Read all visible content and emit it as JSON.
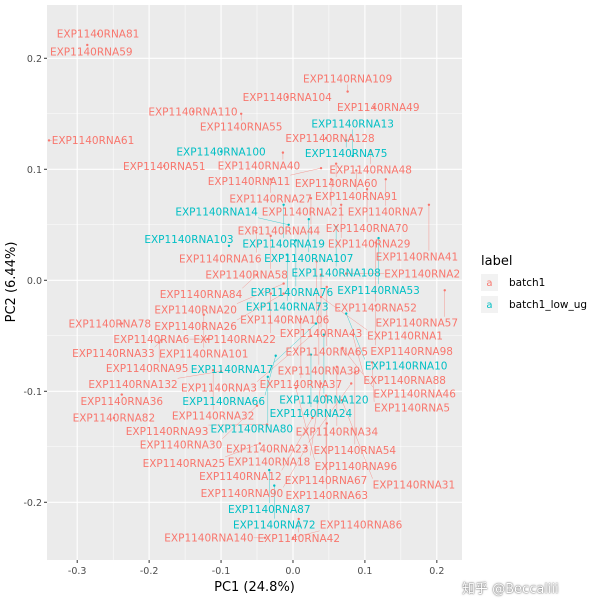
{
  "chart_data": {
    "type": "scatter",
    "geom": "text-labels",
    "xlabel": "PC1 (24.8%)",
    "ylabel": "PC2 (6.44%)",
    "xlim": [
      -0.342,
      0.235
    ],
    "ylim": [
      -0.252,
      0.248
    ],
    "xticks": [
      -0.3,
      -0.2,
      -0.1,
      0.0,
      0.1,
      0.2
    ],
    "xtick_labels": [
      "-0.3",
      "-0.2",
      "-0.1",
      "0.0",
      "0.1",
      "0.2"
    ],
    "yticks": [
      -0.2,
      -0.1,
      0.0,
      0.1,
      0.2
    ],
    "ytick_labels": [
      "-0.2",
      "-0.1",
      "0.0",
      "0.1",
      "0.2"
    ],
    "grid": true,
    "legend": {
      "title": "label",
      "placement": "right",
      "key_glyph": "a",
      "entries": [
        {
          "name": "batch1",
          "color": "#F8766D"
        },
        {
          "name": "batch1_low_ug",
          "color": "#00BFC4"
        }
      ]
    },
    "points": [
      {
        "label": "EXP1140RNA81",
        "x": -0.271,
        "y": 0.222,
        "group": "batch1"
      },
      {
        "label": "EXP1140RNA59",
        "x": -0.286,
        "y": 0.212,
        "group": "batch1"
      },
      {
        "label": "EXP1140RNA104",
        "x": -0.008,
        "y": 0.165,
        "group": "batch1"
      },
      {
        "label": "EXP1140RNA109",
        "x": 0.076,
        "y": 0.17,
        "group": "batch1"
      },
      {
        "label": "EXP1140RNA49",
        "x": 0.113,
        "y": 0.156,
        "group": "batch1"
      },
      {
        "label": "EXP1140RNA110",
        "x": -0.139,
        "y": 0.152,
        "group": "batch1"
      },
      {
        "label": "EXP1140RNA55",
        "x": -0.072,
        "y": 0.15,
        "group": "batch1"
      },
      {
        "label": "EXP1140RNA61",
        "x": -0.354,
        "y": 0.126,
        "group": "batch1"
      },
      {
        "label": "EXP1140RNA51",
        "x": -0.179,
        "y": 0.103,
        "group": "batch1"
      },
      {
        "label": "EXP1140RNA128",
        "x": 0.046,
        "y": 0.128,
        "group": "batch1"
      },
      {
        "label": "EXP1140RNA75",
        "x": 0.074,
        "y": 0.126,
        "group": "batch1_low_ug"
      },
      {
        "label": "EXP1140RNA48",
        "x": 0.108,
        "y": 0.117,
        "group": "batch1"
      },
      {
        "label": "EXP1140RNA13",
        "x": 0.083,
        "y": 0.112,
        "group": "batch1_low_ug"
      },
      {
        "label": "EXP1140RNA100",
        "x": -0.1,
        "y": 0.116,
        "group": "batch1_low_ug"
      },
      {
        "label": "EXP1140RNA40",
        "x": -0.014,
        "y": 0.115,
        "group": "batch1"
      },
      {
        "label": "EXP1140RNA60",
        "x": 0.06,
        "y": 0.105,
        "group": "batch1"
      },
      {
        "label": "EXP1140RNA91",
        "x": 0.088,
        "y": 0.099,
        "group": "batch1"
      },
      {
        "label": "EXP1140RNA11",
        "x": 0.039,
        "y": 0.101,
        "group": "batch1"
      },
      {
        "label": "EXP1140RNA7",
        "x": 0.129,
        "y": 0.091,
        "group": "batch1"
      },
      {
        "label": "EXP1140RNA27",
        "x": -0.031,
        "y": 0.091,
        "group": "batch1"
      },
      {
        "label": "EXP1140RNA21",
        "x": 0.053,
        "y": 0.091,
        "group": "batch1"
      },
      {
        "label": "EXP1140RNA70",
        "x": 0.103,
        "y": 0.082,
        "group": "batch1"
      },
      {
        "label": "EXP1140RNA44",
        "x": 0.025,
        "y": 0.074,
        "group": "batch1"
      },
      {
        "label": "EXP1140RNA19",
        "x": -0.013,
        "y": 0.068,
        "group": "batch1_low_ug"
      },
      {
        "label": "EXP1140RNA29",
        "x": 0.067,
        "y": 0.068,
        "group": "batch1"
      },
      {
        "label": "EXP1140RNA41",
        "x": 0.189,
        "y": 0.068,
        "group": "batch1"
      },
      {
        "label": "EXP1140RNA107",
        "x": 0.022,
        "y": 0.055,
        "group": "batch1_low_ug"
      },
      {
        "label": "EXP1140RNA108",
        "x": 0.06,
        "y": 0.048,
        "group": "batch1_low_ug"
      },
      {
        "label": "EXP1140RNA14",
        "x": -0.006,
        "y": 0.05,
        "group": "batch1_low_ug"
      },
      {
        "label": "EXP1140RNA16",
        "x": -0.051,
        "y": 0.043,
        "group": "batch1"
      },
      {
        "label": "EXP1140RNA58",
        "x": -0.031,
        "y": 0.04,
        "group": "batch1"
      },
      {
        "label": "EXP1140RNA53",
        "x": 0.119,
        "y": 0.038,
        "group": "batch1_low_ug"
      },
      {
        "label": "EXP1140RNA52",
        "x": 0.115,
        "y": 0.034,
        "group": "batch1"
      },
      {
        "label": "EXP1140RNA76",
        "x": 0.004,
        "y": 0.036,
        "group": "batch1_low_ug"
      },
      {
        "label": "EXP1140RNA103",
        "x": -0.089,
        "y": 0.031,
        "group": "batch1_low_ug"
      },
      {
        "label": "EXP1140RNA73",
        "x": -0.008,
        "y": 0.023,
        "group": "batch1_low_ug"
      },
      {
        "label": "EXP1140RNA106",
        "x": 0.033,
        "y": 0.017,
        "group": "batch1"
      },
      {
        "label": "EXP1140RNA84",
        "x": -0.05,
        "y": 0.005,
        "group": "batch1"
      },
      {
        "label": "EXP1140RNA43",
        "x": 0.039,
        "y": 0.005,
        "group": "batch1"
      },
      {
        "label": "EXP1140RNA2",
        "x": 0.074,
        "y": 0.006,
        "group": "batch1"
      },
      {
        "label": "EXP1140RNA20",
        "x": -0.013,
        "y": -0.003,
        "group": "batch1"
      },
      {
        "label": "EXP1140RNA57",
        "x": 0.211,
        "y": -0.009,
        "group": "batch1"
      },
      {
        "label": "EXP1140RNA65",
        "x": 0.047,
        "y": -0.006,
        "group": "batch1"
      },
      {
        "label": "EXP1140RNA22",
        "x": -0.031,
        "y": -0.012,
        "group": "batch1"
      },
      {
        "label": "EXP1140RNA26",
        "x": -0.013,
        "y": -0.012,
        "group": "batch1"
      },
      {
        "label": "EXP1140RNA1",
        "x": 0.039,
        "y": -0.015,
        "group": "batch1"
      },
      {
        "label": "EXP1140RNA98",
        "x": 0.115,
        "y": -0.023,
        "group": "batch1"
      },
      {
        "label": "EXP1140RNA39",
        "x": 0.036,
        "y": -0.023,
        "group": "batch1"
      },
      {
        "label": "EXP1140RNA10",
        "x": 0.074,
        "y": -0.03,
        "group": "batch1_low_ug"
      },
      {
        "label": "EXP1140RNA101",
        "x": -0.124,
        "y": -0.031,
        "group": "batch1"
      },
      {
        "label": "EXP1140RNA78",
        "x": -0.238,
        "y": -0.039,
        "group": "batch1"
      },
      {
        "label": "EXP1140RNA37",
        "x": 0.011,
        "y": -0.035,
        "group": "batch1"
      },
      {
        "label": "EXP1140RNA17",
        "x": 0.032,
        "y": -0.039,
        "group": "batch1_low_ug"
      },
      {
        "label": "EXP1140RNA120",
        "x": 0.043,
        "y": -0.049,
        "group": "batch1_low_ug"
      },
      {
        "label": "EXP1140RNA88",
        "x": 0.083,
        "y": -0.049,
        "group": "batch1"
      },
      {
        "label": "EXP1140RNA3",
        "x": 0.025,
        "y": -0.05,
        "group": "batch1"
      },
      {
        "label": "EXP1140RNA6",
        "x": -0.119,
        "y": -0.053,
        "group": "batch1"
      },
      {
        "label": "EXP1140RNA95",
        "x": -0.186,
        "y": -0.056,
        "group": "batch1"
      },
      {
        "label": "EXP1140RNA33",
        "x": -0.183,
        "y": -0.054,
        "group": "batch1"
      },
      {
        "label": "EXP1140RNA46",
        "x": 0.069,
        "y": -0.061,
        "group": "batch1"
      },
      {
        "label": "EXP1140RNA24",
        "x": 0.025,
        "y": -0.067,
        "group": "batch1_low_ug"
      },
      {
        "label": "EXP1140RNA66",
        "x": -0.024,
        "y": -0.068,
        "group": "batch1_low_ug"
      },
      {
        "label": "EXP1140RNA5",
        "x": 0.11,
        "y": -0.074,
        "group": "batch1"
      },
      {
        "label": "EXP1140RNA34",
        "x": 0.061,
        "y": -0.078,
        "group": "batch1"
      },
      {
        "label": "EXP1140RNA54",
        "x": 0.086,
        "y": -0.083,
        "group": "batch1"
      },
      {
        "label": "EXP1140RNA32",
        "x": -0.111,
        "y": -0.081,
        "group": "batch1"
      },
      {
        "label": "EXP1140RNA132",
        "x": -0.1,
        "y": -0.082,
        "group": "batch1"
      },
      {
        "label": "EXP1140RNA80",
        "x": -0.035,
        "y": -0.087,
        "group": "batch1_low_ug"
      },
      {
        "label": "EXP1140RNA23",
        "x": 0.081,
        "y": -0.093,
        "group": "batch1"
      },
      {
        "label": "EXP1140RNA18",
        "x": 0.039,
        "y": -0.093,
        "group": "batch1"
      },
      {
        "label": "EXP1140RNA96",
        "x": 0.004,
        "y": -0.097,
        "group": "batch1"
      },
      {
        "label": "EXP1140RNA36",
        "x": -0.238,
        "y": -0.103,
        "group": "batch1"
      },
      {
        "label": "EXP1140RNA67",
        "x": 0.046,
        "y": -0.104,
        "group": "batch1"
      },
      {
        "label": "EXP1140RNA31",
        "x": 0.068,
        "y": -0.108,
        "group": "batch1"
      },
      {
        "label": "EXP1140RNA30",
        "x": -0.05,
        "y": -0.113,
        "group": "batch1"
      },
      {
        "label": "EXP1140RNA82",
        "x": -0.249,
        "y": -0.124,
        "group": "batch1"
      },
      {
        "label": "EXP1140RNA12",
        "x": 0.027,
        "y": -0.124,
        "group": "batch1"
      },
      {
        "label": "EXP1140RNA63",
        "x": 0.047,
        "y": -0.129,
        "group": "batch1"
      },
      {
        "label": "EXP1140RNA93",
        "x": -0.036,
        "y": -0.13,
        "group": "batch1"
      },
      {
        "label": "EXP1140RNA25",
        "x": -0.046,
        "y": -0.147,
        "group": "batch1"
      },
      {
        "label": "EXP1140RNA90",
        "x": 0.018,
        "y": -0.151,
        "group": "batch1"
      },
      {
        "label": "EXP1140RNA87",
        "x": -0.033,
        "y": -0.171,
        "group": "batch1_low_ug"
      },
      {
        "label": "EXP1140RNA72",
        "x": -0.026,
        "y": -0.185,
        "group": "batch1_low_ug"
      },
      {
        "label": "EXP1140RNA42",
        "x": 0.008,
        "y": -0.215,
        "group": "batch1"
      },
      {
        "label": "EXP1140RNA140",
        "x": -0.039,
        "y": -0.232,
        "group": "batch1"
      },
      {
        "label": "EXP1140RNA86",
        "x": 0.0,
        "y": -0.232,
        "group": "batch1"
      }
    ]
  },
  "watermark": "知乎 @Beccaliii"
}
